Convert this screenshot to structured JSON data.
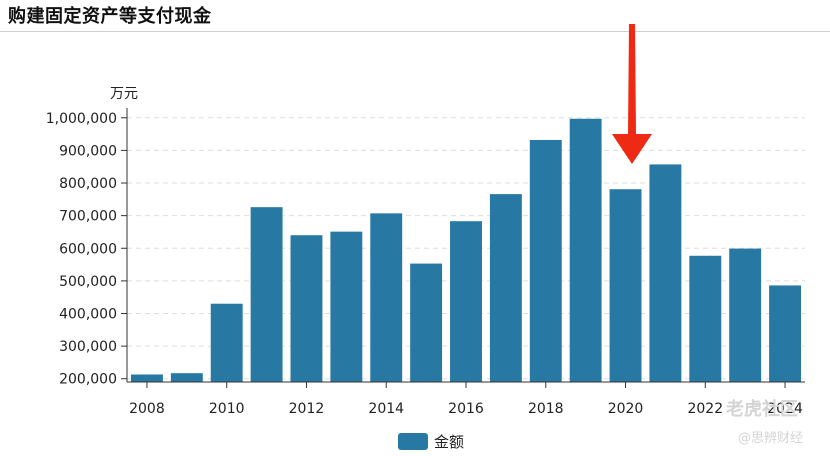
{
  "title": "购建固定资产等支付现金",
  "chart_data": {
    "type": "bar",
    "ylabel": "万元",
    "ylim": [
      190000,
      1030000
    ],
    "yticks": [
      200000,
      300000,
      400000,
      500000,
      600000,
      700000,
      800000,
      900000,
      1000000
    ],
    "ytick_labels": [
      "200,000",
      "300,000",
      "400,000",
      "500,000",
      "600,000",
      "700,000",
      "800,000",
      "900,000",
      "1,000,000"
    ],
    "categories": [
      "2008",
      "2009",
      "2010",
      "2011",
      "2012",
      "2013",
      "2014",
      "2015",
      "2016",
      "2017",
      "2018",
      "2019",
      "2020",
      "2021",
      "2022",
      "2023",
      "2024"
    ],
    "xtick_labels": [
      "2008",
      "2010",
      "2012",
      "2014",
      "2016",
      "2018",
      "2020",
      "2022",
      "2024"
    ],
    "series": [
      {
        "name": "金额",
        "color": "#2878a4",
        "values": [
          213000,
          217000,
          430000,
          726000,
          640000,
          651000,
          707000,
          553000,
          683000,
          766000,
          932000,
          997000,
          781000,
          857000,
          577000,
          599000,
          486000
        ]
      }
    ],
    "grid": true,
    "grid_style": "dashed-horizontal",
    "legend_position": "bottom-center"
  },
  "annotation": {
    "icon": "red-down-arrow",
    "color": "#ee2a14",
    "points_to": "2020"
  },
  "watermark": {
    "brand": "老虎社区",
    "handle": "@思辨财经"
  }
}
